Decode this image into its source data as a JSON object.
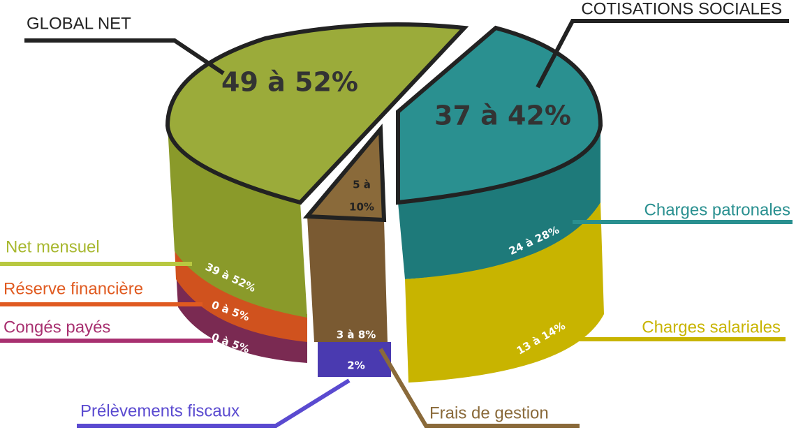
{
  "global_net": {
    "title": "GLOBAL NET",
    "value": "49 à 52%"
  },
  "cotisations_sociales": {
    "title": "COTISATIONS SOCIALES",
    "value": "37 à 42%"
  },
  "frais_top": {
    "lines": [
      "5 à",
      "10%"
    ]
  },
  "segments": [
    {
      "label": "Net mensuel",
      "value": "39 à 52%"
    },
    {
      "label": "Réserve financière",
      "value": "0 à 5%"
    },
    {
      "label": "Congés payés",
      "value": "0 à 5%"
    },
    {
      "label": "Charges patronales",
      "value": "24 à 28%"
    },
    {
      "label": "Charges salariales",
      "value": "13 à 14%"
    },
    {
      "label": "Frais de gestion",
      "value": "3 à 8%"
    },
    {
      "label": "Prélèvements fiscaux",
      "value": "2%"
    }
  ]
}
